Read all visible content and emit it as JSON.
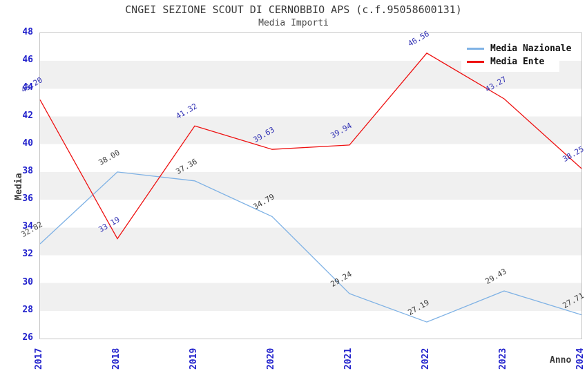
{
  "title": "CNGEI SEZIONE SCOUT DI CERNOBBIO APS (c.f.95058600131)",
  "subtitle": "Media Importi",
  "chart_data": {
    "type": "line",
    "title": "CNGEI SEZIONE SCOUT DI CERNOBBIO APS (c.f.95058600131)",
    "subtitle": "Media Importi",
    "categories": [
      "2017",
      "2018",
      "2019",
      "2020",
      "2021",
      "2022",
      "2023",
      "2024"
    ],
    "series": [
      {
        "name": "Media Nazionale",
        "color": "#7fb2e5",
        "label_color": "#3c3c3c",
        "values": [
          32.82,
          38.0,
          37.36,
          34.79,
          29.24,
          27.19,
          29.43,
          27.71
        ]
      },
      {
        "name": "Media Ente",
        "color": "#ee1111",
        "label_color": "#3232b4",
        "values": [
          43.2,
          33.19,
          41.32,
          39.63,
          39.94,
          46.56,
          43.27,
          38.25
        ]
      }
    ],
    "xlabel": "Anno",
    "ylabel": "Media",
    "ylim": [
      26,
      48
    ],
    "ytick_step": 2,
    "yticks": [
      26,
      28,
      30,
      32,
      34,
      36,
      38,
      40,
      42,
      44,
      46,
      48
    ],
    "grid": "alternating-horizontal-bands",
    "band_color": "#f0f0f0",
    "tick_label_color": "#2222cc",
    "legend_position": "top-right",
    "legend": [
      "Media Nazionale",
      "Media Ente"
    ]
  }
}
